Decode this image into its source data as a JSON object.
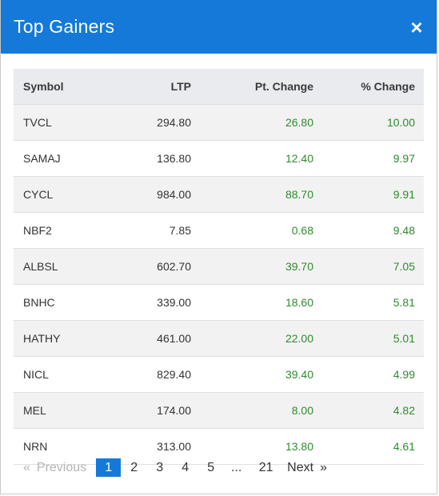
{
  "header": {
    "title": "Top Gainers",
    "close_glyph": "×"
  },
  "table": {
    "columns": [
      "Symbol",
      "LTP",
      "Pt. Change",
      "% Change"
    ],
    "rows": [
      {
        "symbol": "TVCL",
        "ltp": "294.80",
        "pt_change": "26.80",
        "pct_change": "10.00"
      },
      {
        "symbol": "SAMAJ",
        "ltp": "136.80",
        "pt_change": "12.40",
        "pct_change": "9.97"
      },
      {
        "symbol": "CYCL",
        "ltp": "984.00",
        "pt_change": "88.70",
        "pct_change": "9.91"
      },
      {
        "symbol": "NBF2",
        "ltp": "7.85",
        "pt_change": "0.68",
        "pct_change": "9.48"
      },
      {
        "symbol": "ALBSL",
        "ltp": "602.70",
        "pt_change": "39.70",
        "pct_change": "7.05"
      },
      {
        "symbol": "BNHC",
        "ltp": "339.00",
        "pt_change": "18.60",
        "pct_change": "5.81"
      },
      {
        "symbol": "HATHY",
        "ltp": "461.00",
        "pt_change": "22.00",
        "pct_change": "5.01"
      },
      {
        "symbol": "NICL",
        "ltp": "829.40",
        "pt_change": "39.40",
        "pct_change": "4.99"
      },
      {
        "symbol": "MEL",
        "ltp": "174.00",
        "pt_change": "8.00",
        "pct_change": "4.82"
      },
      {
        "symbol": "NRN",
        "ltp": "313.00",
        "pt_change": "13.80",
        "pct_change": "4.61"
      }
    ]
  },
  "pagination": {
    "prev_arrow": "«",
    "prev_label": "Previous",
    "pages": [
      "1",
      "2",
      "3",
      "4",
      "5"
    ],
    "active_page": "1",
    "ellipsis": "...",
    "last_page": "21",
    "next_label": "Next",
    "next_arrow": "»"
  },
  "colors": {
    "header_bg": "#1479d9",
    "positive": "#2e8b2e",
    "active_page_bg": "#1479d9"
  }
}
